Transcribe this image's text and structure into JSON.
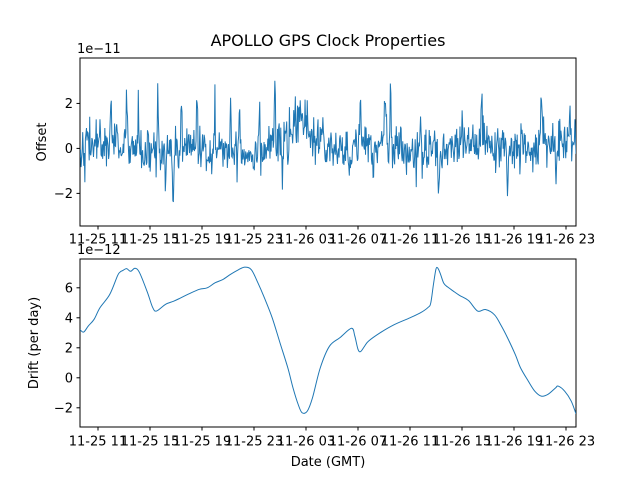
{
  "figure": {
    "title": "APOLLO GPS Clock Properties",
    "background_color": "#ffffff",
    "line_color": "#1f77b4",
    "text_color": "#000000",
    "axes_edge_color": "#000000"
  },
  "chart_data": [
    {
      "type": "line",
      "name": "gps-clock-offset",
      "title": "APOLLO GPS Clock Properties",
      "ylabel": "Offset",
      "offset_text": "1e−11",
      "value_unit": "1e-11 (y) ; x = hours after 11-25 11:00 GMT",
      "xlim_hours": [
        -1.385,
        36.77
      ],
      "ylim": [
        -3.45,
        4.02
      ],
      "x_ticks_hours": [
        0,
        4,
        8,
        12,
        16,
        20,
        24,
        28,
        32,
        36
      ],
      "x_tick_labels": [
        "11-25 11",
        "11-25 15",
        "11-25 19",
        "11-25 23",
        "11-26 03",
        "11-26 07",
        "11-26 11",
        "11-26 15",
        "11-26 19",
        "11-26 23"
      ],
      "y_ticks": [
        -2,
        0,
        2
      ],
      "y_tick_labels": [
        "−2",
        "0",
        "2"
      ],
      "grid": false,
      "legend": null,
      "series_kind": "dense_gaussian_noise_with_spikes",
      "noise": {
        "seed": 42,
        "n_points": 920,
        "std": 0.5
      },
      "slow_modulation": [
        {
          "amp": 0.18,
          "freq": 0.9,
          "phase": 1.0
        },
        {
          "amp": 0.12,
          "freq": 0.35,
          "phase": 2.0
        }
      ],
      "spikes_hour_amplitude": [
        [
          1.0,
          1.6
        ],
        [
          2.2,
          2.3
        ],
        [
          3.1,
          1.5
        ],
        [
          4.6,
          2.3
        ],
        [
          5.2,
          -1.6
        ],
        [
          5.8,
          -2.9
        ],
        [
          6.4,
          1.7
        ],
        [
          7.6,
          2.0
        ],
        [
          9.0,
          1.6
        ],
        [
          10.2,
          2.0
        ],
        [
          10.9,
          2.2
        ],
        [
          12.4,
          1.7
        ],
        [
          13.6,
          3.3
        ],
        [
          14.2,
          -1.5
        ],
        [
          17.3,
          1.7
        ],
        [
          19.3,
          -1.5
        ],
        [
          20.2,
          2.0
        ],
        [
          21.2,
          -1.6
        ],
        [
          22.1,
          2.7
        ],
        [
          22.5,
          2.3
        ],
        [
          23.3,
          1.5
        ],
        [
          24.8,
          1.6
        ],
        [
          26.2,
          -1.8
        ],
        [
          28.0,
          1.5
        ],
        [
          29.5,
          2.2
        ],
        [
          31.5,
          -1.6
        ],
        [
          32.6,
          1.4
        ],
        [
          34.1,
          2.0
        ],
        [
          35.2,
          -1.3
        ],
        [
          36.3,
          1.4
        ]
      ],
      "hump": {
        "hour": 15.8,
        "amp": 1.15,
        "width_hours": 0.55
      }
    },
    {
      "type": "line",
      "name": "gps-clock-drift",
      "ylabel": "Drift (per day)",
      "xlabel": "Date (GMT)",
      "offset_text": "1e−12",
      "value_unit": "1e-12 (y) ; x = hours after 11-25 11:00 GMT",
      "xlim_hours": [
        -1.385,
        36.77
      ],
      "ylim": [
        -3.28,
        7.92
      ],
      "x_ticks_hours": [
        0,
        4,
        8,
        12,
        16,
        20,
        24,
        28,
        32,
        36
      ],
      "x_tick_labels": [
        "11-25 11",
        "11-25 15",
        "11-25 19",
        "11-25 23",
        "11-26 03",
        "11-26 07",
        "11-26 11",
        "11-26 15",
        "11-26 19",
        "11-26 23"
      ],
      "y_ticks": [
        -2,
        0,
        2,
        4,
        6
      ],
      "y_tick_labels": [
        "−2",
        "0",
        "2",
        "4",
        "6"
      ],
      "grid": false,
      "legend": null,
      "points_hour_value": [
        [
          -1.38,
          3.2
        ],
        [
          -1.1,
          3.05
        ],
        [
          -0.75,
          3.45
        ],
        [
          -0.3,
          3.9
        ],
        [
          0.15,
          4.67
        ],
        [
          0.9,
          5.55
        ],
        [
          1.5,
          6.8
        ],
        [
          1.7,
          7.05
        ],
        [
          1.9,
          7.15
        ],
        [
          2.2,
          7.28
        ],
        [
          2.5,
          7.1
        ],
        [
          2.85,
          7.3
        ],
        [
          3.2,
          7.0
        ],
        [
          3.8,
          5.7
        ],
        [
          4.2,
          4.7
        ],
        [
          4.5,
          4.45
        ],
        [
          5.2,
          4.9
        ],
        [
          5.8,
          5.1
        ],
        [
          6.3,
          5.3
        ],
        [
          7.0,
          5.6
        ],
        [
          7.8,
          5.9
        ],
        [
          8.4,
          6.0
        ],
        [
          9.0,
          6.33
        ],
        [
          9.6,
          6.55
        ],
        [
          10.2,
          6.9
        ],
        [
          10.8,
          7.2
        ],
        [
          11.3,
          7.38
        ],
        [
          11.8,
          7.2
        ],
        [
          12.3,
          6.33
        ],
        [
          12.8,
          5.33
        ],
        [
          13.4,
          4.0
        ],
        [
          14.0,
          2.33
        ],
        [
          14.6,
          0.67
        ],
        [
          15.0,
          -0.67
        ],
        [
          15.4,
          -1.78
        ],
        [
          15.7,
          -2.33
        ],
        [
          16.1,
          -2.22
        ],
        [
          16.5,
          -1.33
        ],
        [
          17.1,
          0.67
        ],
        [
          17.8,
          2.1
        ],
        [
          18.6,
          2.67
        ],
        [
          19.5,
          3.3
        ],
        [
          19.75,
          2.8
        ],
        [
          20.0,
          1.9
        ],
        [
          20.2,
          1.75
        ],
        [
          20.5,
          2.1
        ],
        [
          20.8,
          2.44
        ],
        [
          21.7,
          3.0
        ],
        [
          22.8,
          3.55
        ],
        [
          24.0,
          4.0
        ],
        [
          24.8,
          4.33
        ],
        [
          25.4,
          4.7
        ],
        [
          25.6,
          5.0
        ],
        [
          25.8,
          6.2
        ],
        [
          26.0,
          7.25
        ],
        [
          26.15,
          7.3
        ],
        [
          26.35,
          6.9
        ],
        [
          26.6,
          6.3
        ],
        [
          26.9,
          6.05
        ],
        [
          27.3,
          5.8
        ],
        [
          27.8,
          5.5
        ],
        [
          28.5,
          5.15
        ],
        [
          29.2,
          4.45
        ],
        [
          29.8,
          4.55
        ],
        [
          30.5,
          4.2
        ],
        [
          31.0,
          3.5
        ],
        [
          31.5,
          2.67
        ],
        [
          32.1,
          1.55
        ],
        [
          32.5,
          0.67
        ],
        [
          33.1,
          -0.22
        ],
        [
          33.6,
          -0.89
        ],
        [
          34.1,
          -1.22
        ],
        [
          34.6,
          -1.11
        ],
        [
          35.2,
          -0.67
        ],
        [
          35.4,
          -0.55
        ],
        [
          35.9,
          -0.89
        ],
        [
          36.4,
          -1.55
        ],
        [
          36.77,
          -2.4
        ]
      ]
    }
  ]
}
